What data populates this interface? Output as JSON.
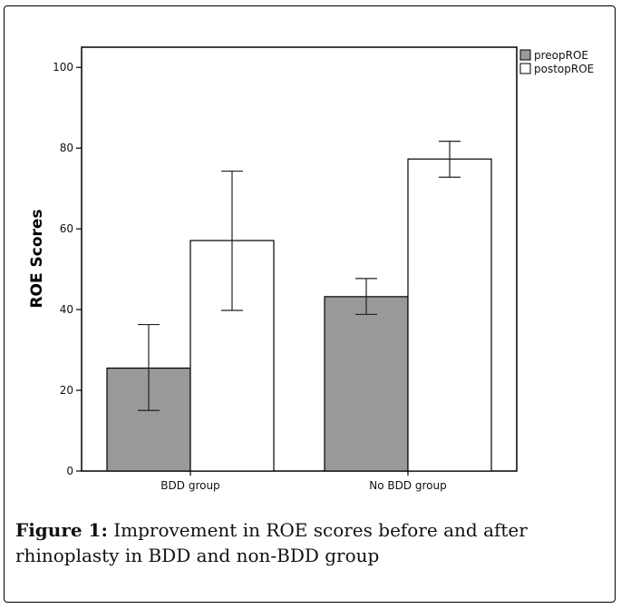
{
  "chart_data": {
    "type": "bar",
    "categories": [
      "BDD group",
      "No BDD group"
    ],
    "series": [
      {
        "name": "preopROE",
        "color": "#999999",
        "values": [
          25.5,
          43.2
        ],
        "error_low": [
          15.0,
          38.8
        ],
        "error_high": [
          36.3,
          47.7
        ]
      },
      {
        "name": "postopROE",
        "color": "#ffffff",
        "values": [
          57.1,
          77.3
        ],
        "error_low": [
          39.8,
          72.8
        ],
        "error_high": [
          74.3,
          81.7
        ]
      }
    ],
    "ylabel": "ROE Scores",
    "xlabel": "",
    "ylim": [
      0,
      105
    ],
    "yticks": [
      0,
      20,
      40,
      60,
      80,
      100
    ],
    "grid": false,
    "legend_position": "top-right",
    "error_bars": true
  },
  "caption": {
    "label": "Figure 1:",
    "text": " Improvement in ROE scores before and after rhinoplasty in BDD and non-BDD group"
  }
}
